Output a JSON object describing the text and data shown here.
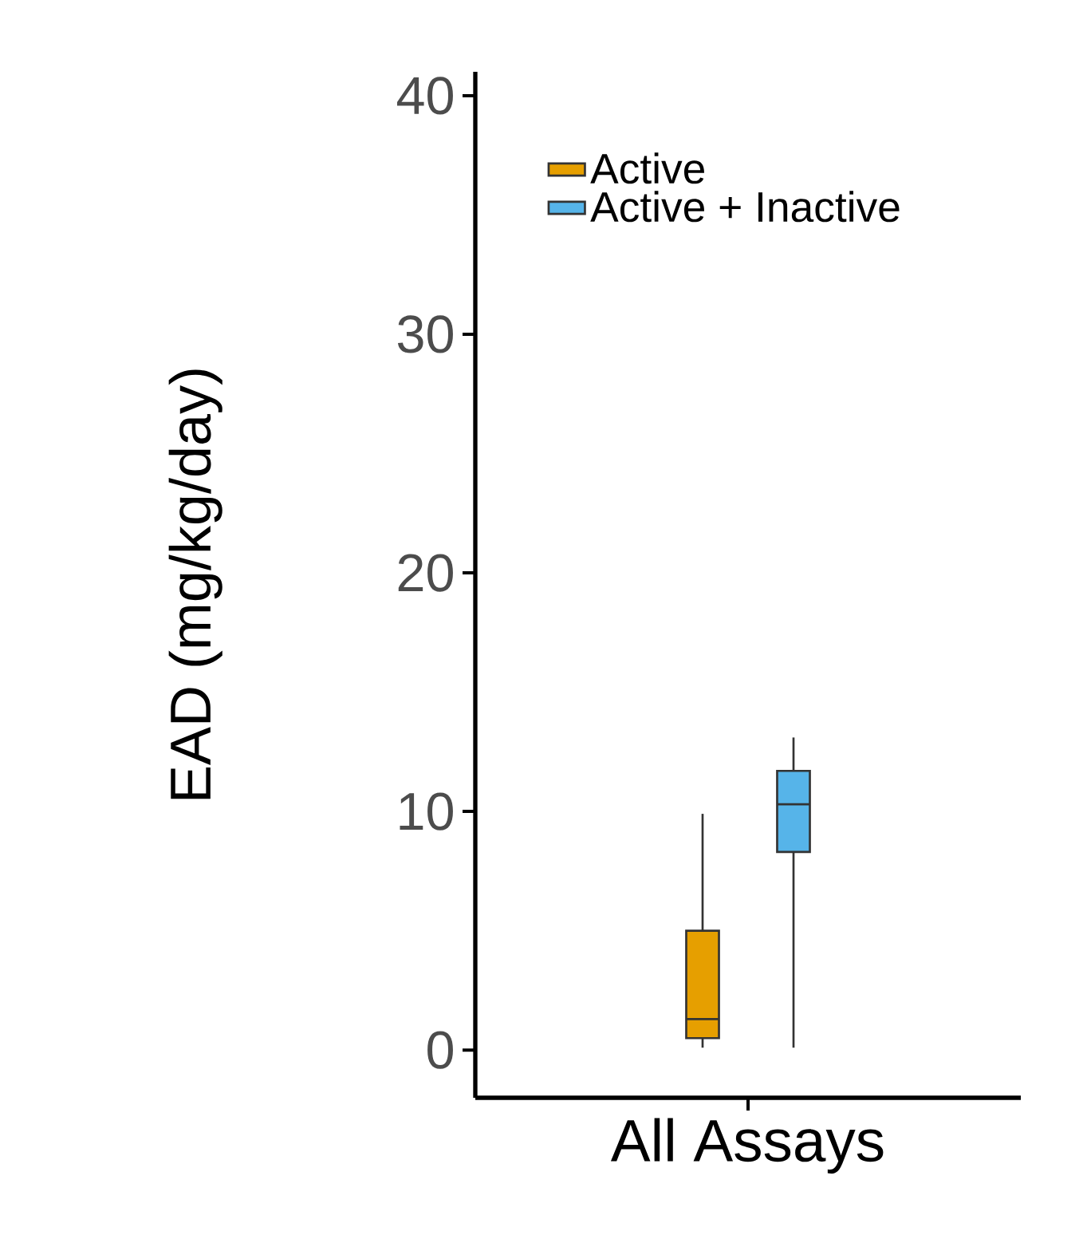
{
  "chart_data": {
    "type": "box",
    "ylabel": "EAD (mg/kg/day)",
    "categories": [
      "All Assays"
    ],
    "ylim": [
      -2,
      41
    ],
    "yticks": [
      0,
      10,
      20,
      30,
      40
    ],
    "legend": "top left",
    "series": [
      {
        "name": "Active",
        "color": "#e69f00",
        "boxes": [
          {
            "low": 0.1,
            "q1": 0.5,
            "median": 1.3,
            "q3": 5.0,
            "high": 9.9
          }
        ]
      },
      {
        "name": "Active + Inactive",
        "color": "#56b4e9",
        "boxes": [
          {
            "low": 0.1,
            "q1": 8.3,
            "median": 10.3,
            "q3": 11.7,
            "high": 13.1
          }
        ]
      }
    ]
  }
}
